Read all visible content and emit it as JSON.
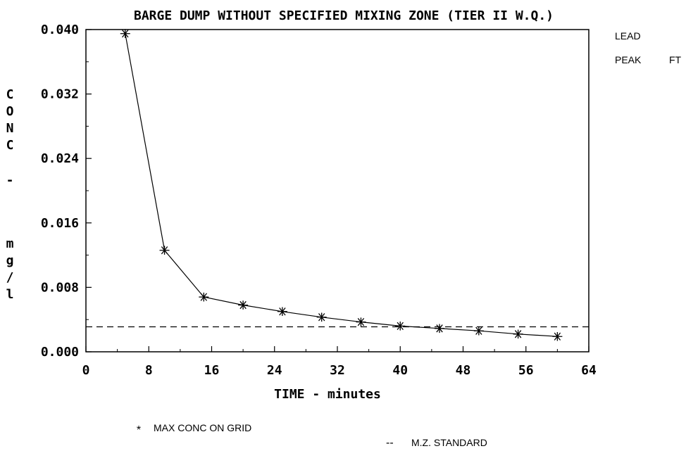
{
  "chart_data": {
    "type": "line",
    "title": "BARGE DUMP WITHOUT SPECIFIED MIXING ZONE (TIER II W.Q.)",
    "xlabel": "TIME - minutes",
    "ylabel_chars": [
      "C",
      "O",
      "N",
      "C",
      "-",
      "m",
      "g",
      "/",
      "l"
    ],
    "xlim": [
      0,
      64
    ],
    "ylim": [
      0.0,
      0.04
    ],
    "x_ticks": [
      0,
      8,
      16,
      24,
      32,
      40,
      48,
      56,
      64
    ],
    "x_tick_labels": [
      "0",
      "8",
      "16",
      "24",
      "32",
      "40",
      "48",
      "56",
      "64"
    ],
    "y_ticks": [
      0.0,
      0.008,
      0.016,
      0.024,
      0.032,
      0.04
    ],
    "y_tick_labels": [
      "0.000",
      "0.008",
      "0.016",
      "0.024",
      "0.032",
      "0.040"
    ],
    "grid": false,
    "series": [
      {
        "name": "MAX CONC ON GRID",
        "style": "line-with-star-markers",
        "x": [
          5,
          10,
          15,
          20,
          25,
          30,
          35,
          40,
          45,
          50,
          55,
          60
        ],
        "y": [
          0.0395,
          0.0126,
          0.0068,
          0.0058,
          0.005,
          0.0043,
          0.0037,
          0.0032,
          0.0029,
          0.0026,
          0.0022,
          0.0019
        ]
      },
      {
        "name": "M.Z. STANDARD",
        "style": "dashed",
        "y_constant": 0.0031
      }
    ],
    "side_labels": {
      "pollutant": "LEAD",
      "metric_1": "PEAK",
      "metric_2": "FT"
    },
    "legend": {
      "marker_symbol": "*",
      "marker_label": "MAX CONC ON GRID",
      "dash_symbol": "--",
      "dash_label": "M.Z. STANDARD"
    },
    "colors": {
      "ink": "#000000",
      "background": "#ffffff"
    }
  }
}
